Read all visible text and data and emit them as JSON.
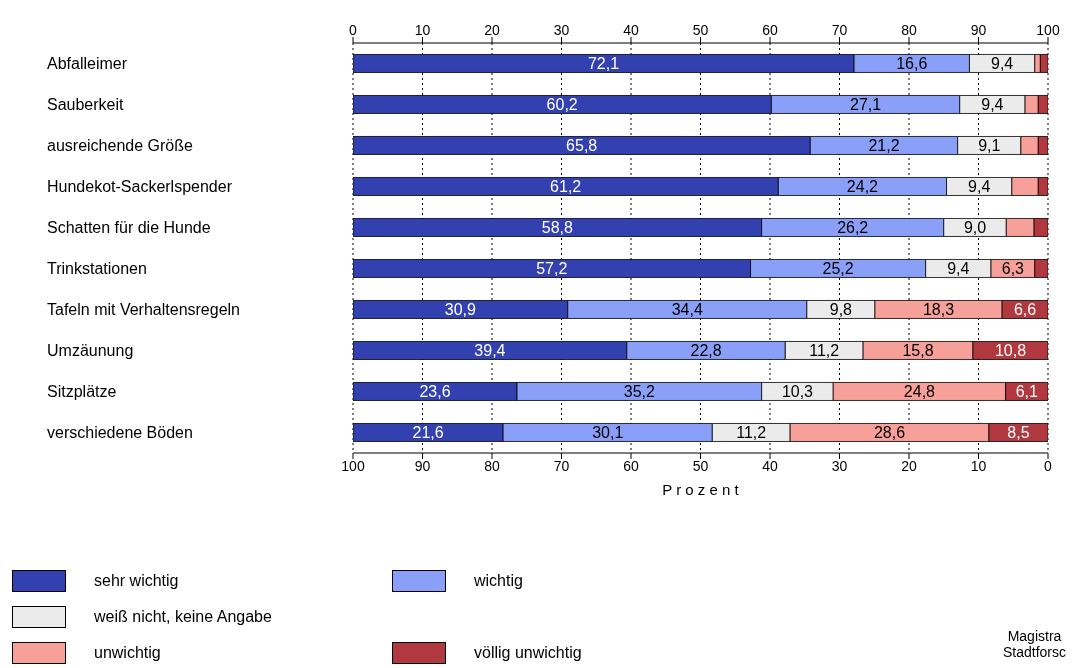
{
  "chart_data": {
    "type": "bar",
    "orientation": "horizontal",
    "stacked": true,
    "xlabel": "P r o z e n t",
    "categories": [
      "Abfalleimer",
      "Sauberkeit",
      "ausreichende Größe",
      "Hundekot-Sackerlspender",
      "Schatten für die Hunde",
      "Trinkstationen",
      "Tafeln mit Verhaltensregeln",
      "Umzäunung",
      "Sitzplätze",
      "verschiedene Böden"
    ],
    "series": [
      {
        "name": "sehr wichtig",
        "color": "#3341b0",
        "axis": "x2",
        "values": [
          72.1,
          60.2,
          65.8,
          61.2,
          58.8,
          57.2,
          30.9,
          39.4,
          23.6,
          21.6
        ],
        "value_labels": [
          "72,1",
          "60,2",
          "65,8",
          "61,2",
          "58,8",
          "57,2",
          "30,9",
          "39,4",
          "23,6",
          "21,6"
        ]
      },
      {
        "name": "wichtig",
        "color": "#8a9ff7",
        "axis": "x2",
        "values": [
          16.6,
          27.1,
          21.2,
          24.2,
          26.2,
          25.2,
          34.4,
          22.8,
          35.2,
          30.1
        ],
        "value_labels": [
          "16,6",
          "27,1",
          "21,2",
          "24,2",
          "26,2",
          "25,2",
          "34,4",
          "22,8",
          "35,2",
          "30,1"
        ]
      },
      {
        "name": "weiß nicht, keine Angabe",
        "color": "#ebebeb",
        "axis": "x2",
        "values": [
          9.4,
          9.4,
          9.1,
          9.4,
          9.0,
          9.4,
          9.8,
          11.2,
          10.3,
          11.2
        ],
        "value_labels": [
          "9,4",
          "9,4",
          "9,1",
          "9,4",
          "9,0",
          "9,4",
          "9,8",
          "11,2",
          "10,3",
          "11,2"
        ]
      },
      {
        "name": "unwichtig",
        "color": "#f7a09a",
        "axis": "x2",
        "values": [
          0.8,
          1.9,
          2.5,
          3.8,
          4.0,
          6.3,
          18.3,
          15.8,
          24.8,
          28.6
        ],
        "value_labels": [
          null,
          null,
          null,
          null,
          null,
          "6,3",
          "18,3",
          "15,8",
          "24,8",
          "28,6"
        ]
      },
      {
        "name": "völlig unwichtig",
        "color": "#b0383e",
        "axis": "x2",
        "values": [
          1.1,
          1.4,
          1.4,
          1.4,
          2.0,
          1.9,
          6.6,
          10.8,
          6.1,
          8.5
        ],
        "value_labels": [
          null,
          null,
          null,
          null,
          null,
          null,
          "6,6",
          "10,8",
          "6,1",
          "8,5"
        ]
      }
    ],
    "x2lim": [
      0,
      100
    ],
    "x2ticks": [
      0,
      10,
      20,
      30,
      40,
      50,
      60,
      70,
      80,
      90,
      100
    ],
    "xlim": [
      100,
      0
    ],
    "xticks": [
      100,
      90,
      80,
      70,
      60,
      50,
      40,
      30,
      20,
      10,
      0
    ],
    "grid": "x",
    "legend": "bottom left",
    "annotations": [
      "Magistra",
      "Stadtforsc"
    ]
  }
}
